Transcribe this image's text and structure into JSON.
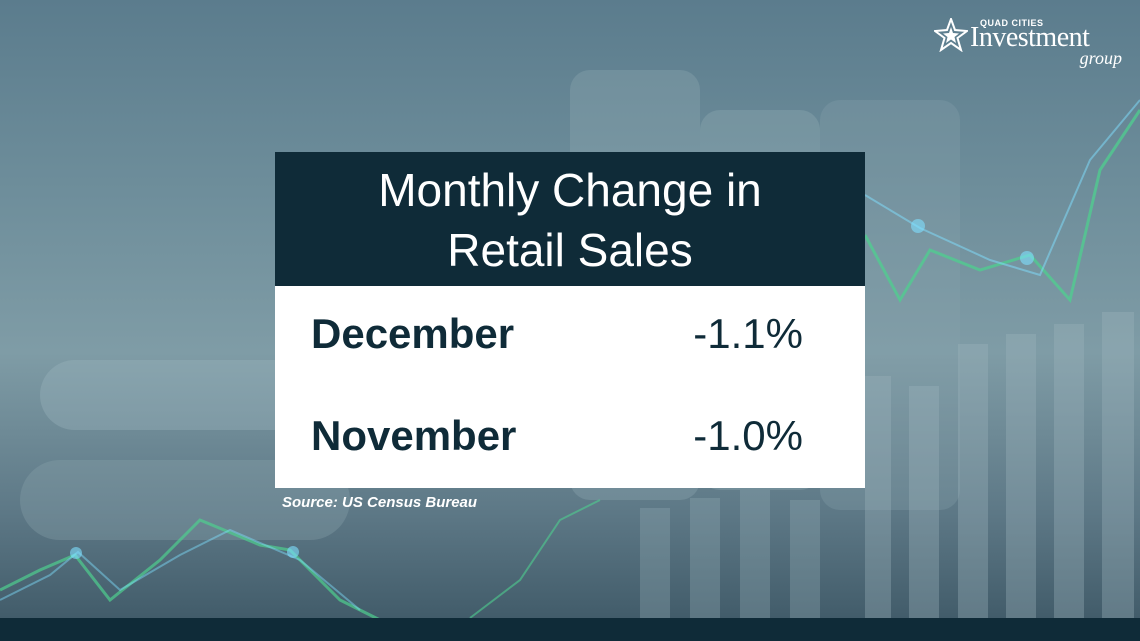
{
  "logo": {
    "small_text": "QUAD CITIES",
    "main_text": "Investment",
    "sub_text": "group"
  },
  "card": {
    "title_line1": "Monthly Change in",
    "title_line2": "Retail Sales",
    "rows": [
      {
        "label": "December",
        "value": "-1.1%"
      },
      {
        "label": "November",
        "value": "-1.0%"
      }
    ]
  },
  "source": "Source: US Census Bureau",
  "colors": {
    "header_bg": "#0f2b38",
    "body_bg": "#ffffff",
    "text_dark": "#0f2b38",
    "accent_green": "#3fbf7f"
  }
}
